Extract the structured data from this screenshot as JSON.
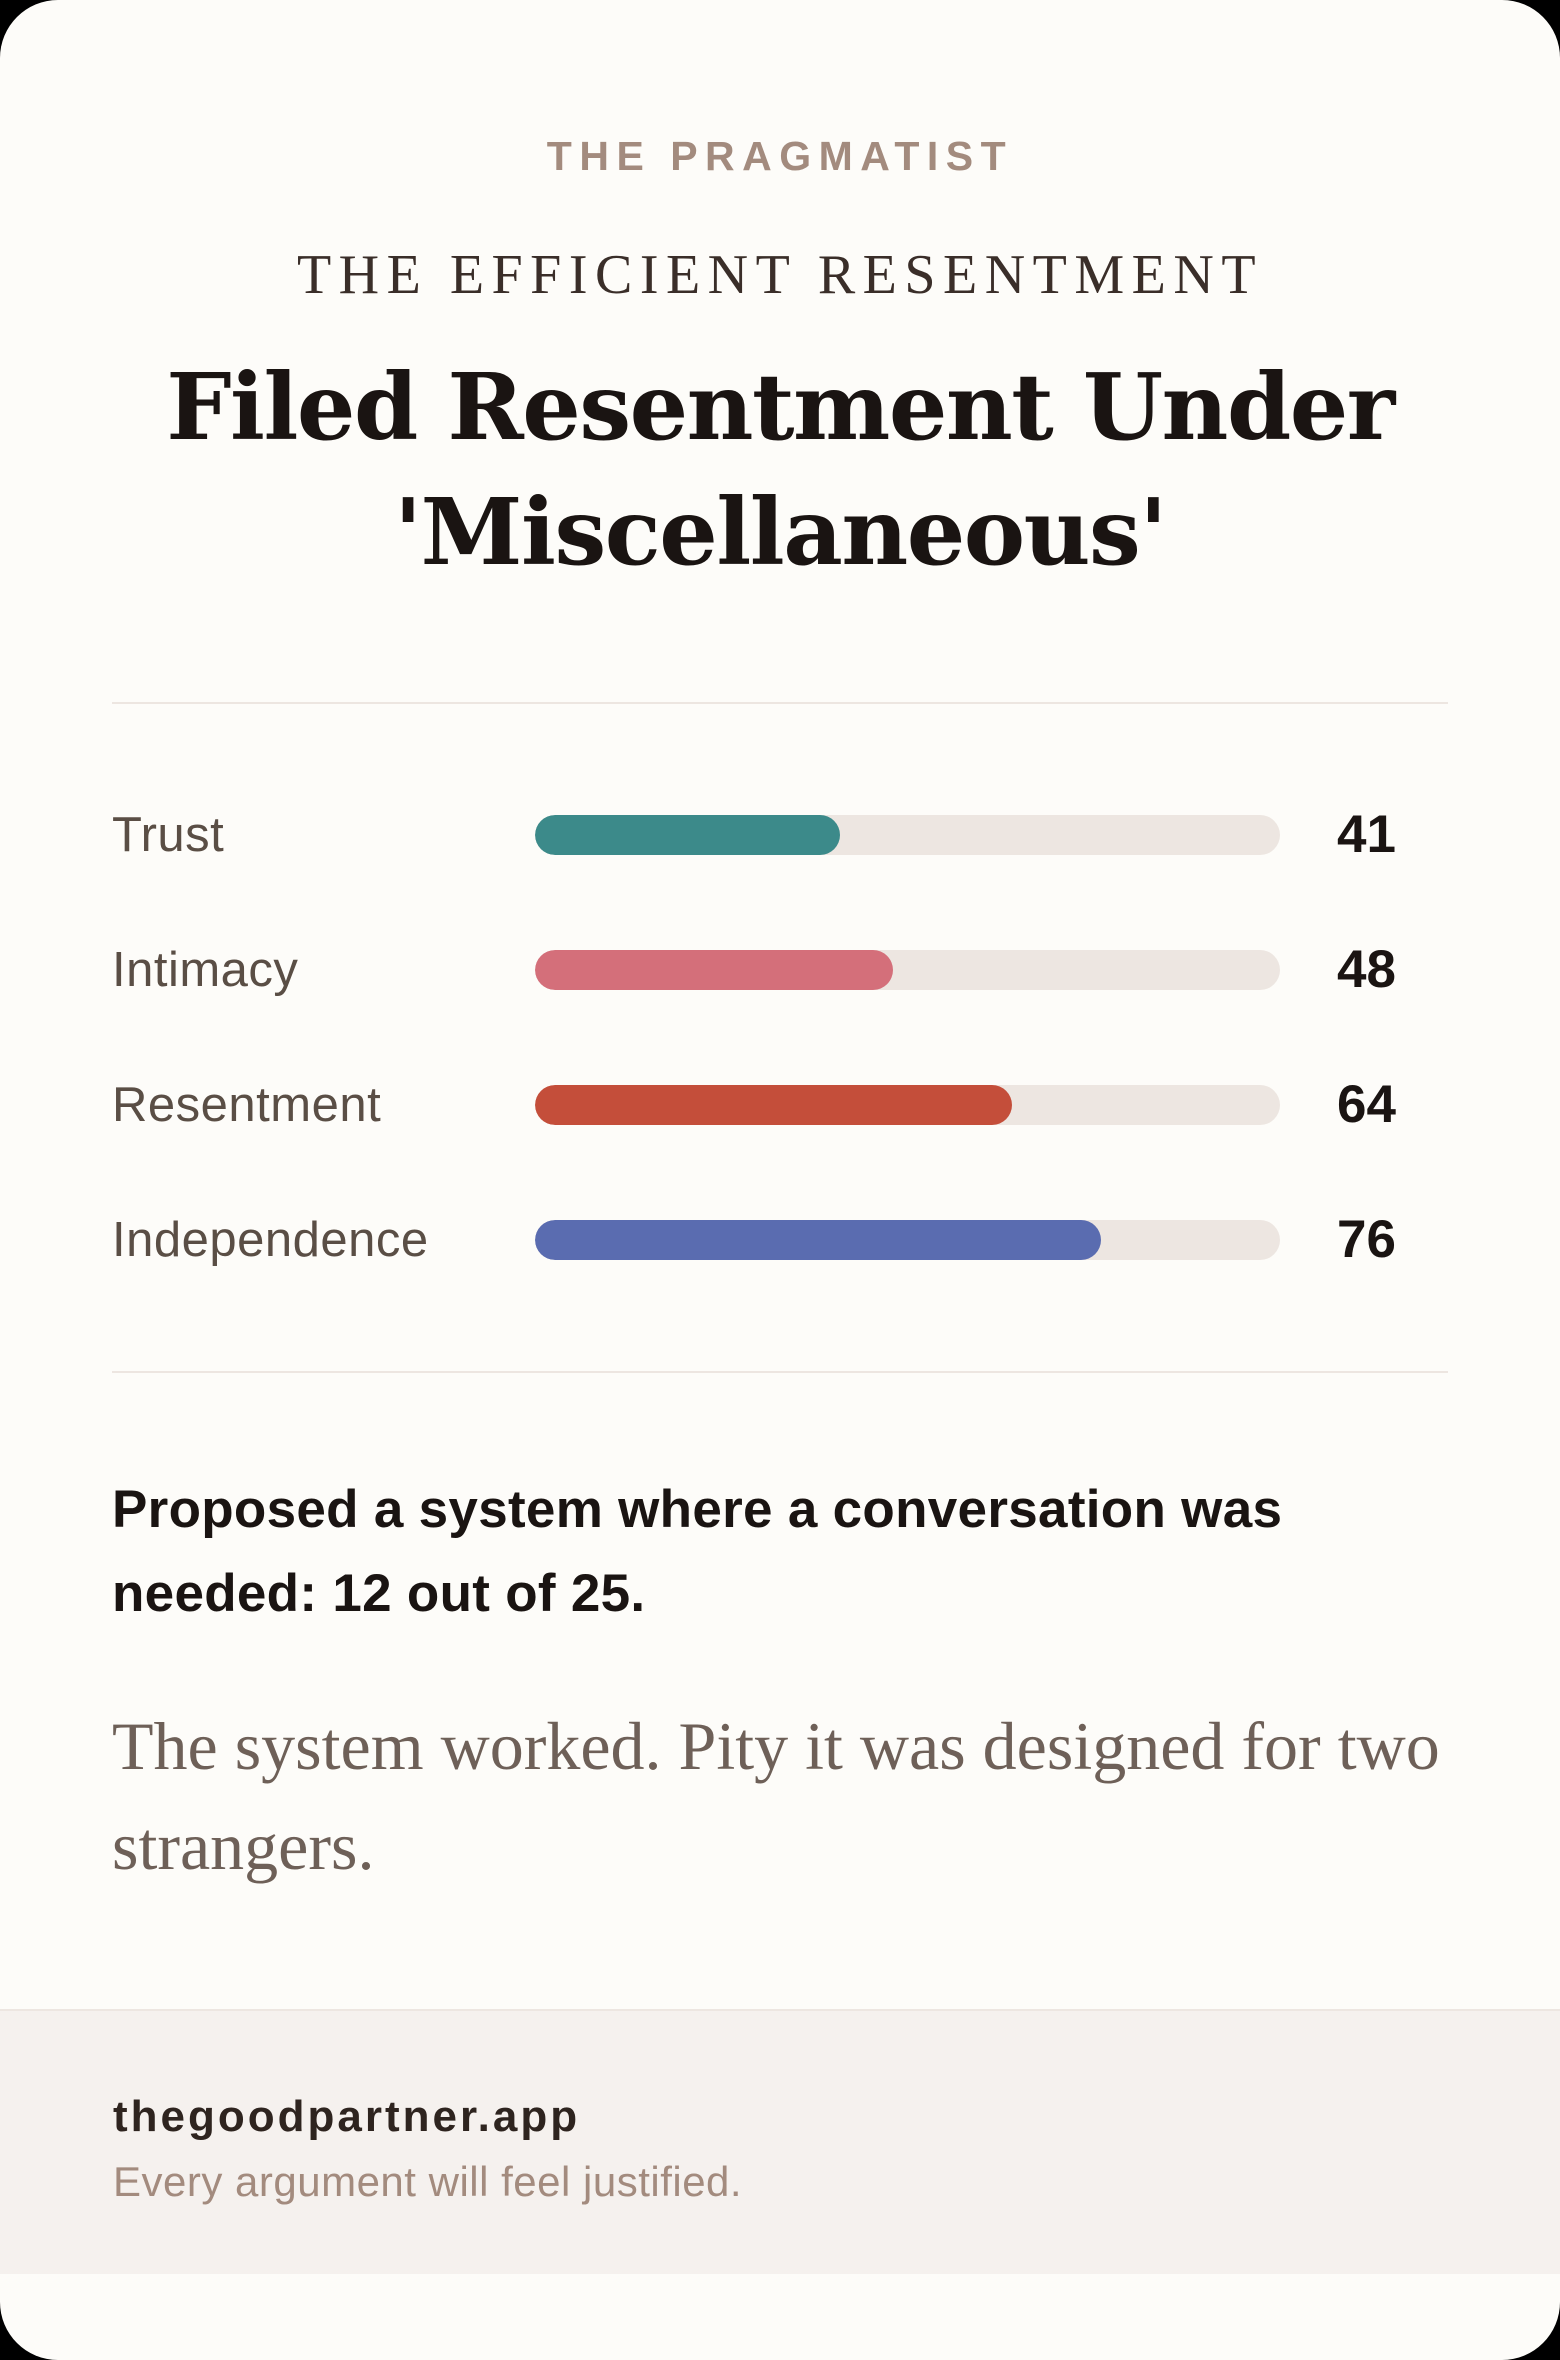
{
  "card": {
    "eyebrow": "THE PRAGMATIST",
    "subtitle": "THE EFFICIENT RESENTMENT",
    "headline": "Filed Resentment Under 'Miscellaneous'"
  },
  "metrics": [
    {
      "label": "Trust",
      "value": "41",
      "percent": 41,
      "color": "#3C8A8A"
    },
    {
      "label": "Intimacy",
      "value": "48",
      "percent": 48,
      "color": "#D46F7A"
    },
    {
      "label": "Resentment",
      "value": "64",
      "percent": 64,
      "color": "#C44E3A"
    },
    {
      "label": "Independence",
      "value": "76",
      "percent": 76,
      "color": "#5A6CB0"
    }
  ],
  "description": "Proposed a system where a conversation was needed: 12 out of 25.",
  "quote": "The system worked. Pity it was designed for two strangers.",
  "footer": {
    "domain": "thegoodpartner.app",
    "tagline": "Every argument will feel justified."
  },
  "colors": {
    "card_background": "#FDFCF9",
    "footer_background": "#F5F1EE",
    "bar_track": "#EDE6E1",
    "eyebrow": "#A38B7E",
    "headline": "#1A1412"
  },
  "chart_data": {
    "type": "bar",
    "orientation": "horizontal",
    "categories": [
      "Trust",
      "Intimacy",
      "Resentment",
      "Independence"
    ],
    "values": [
      41,
      48,
      64,
      76
    ],
    "colors": [
      "#3C8A8A",
      "#D46F7A",
      "#C44E3A",
      "#5A6CB0"
    ],
    "xlim": [
      0,
      100
    ],
    "title": "",
    "xlabel": "",
    "ylabel": "",
    "grid": false,
    "legend": false,
    "value_labels": true
  }
}
